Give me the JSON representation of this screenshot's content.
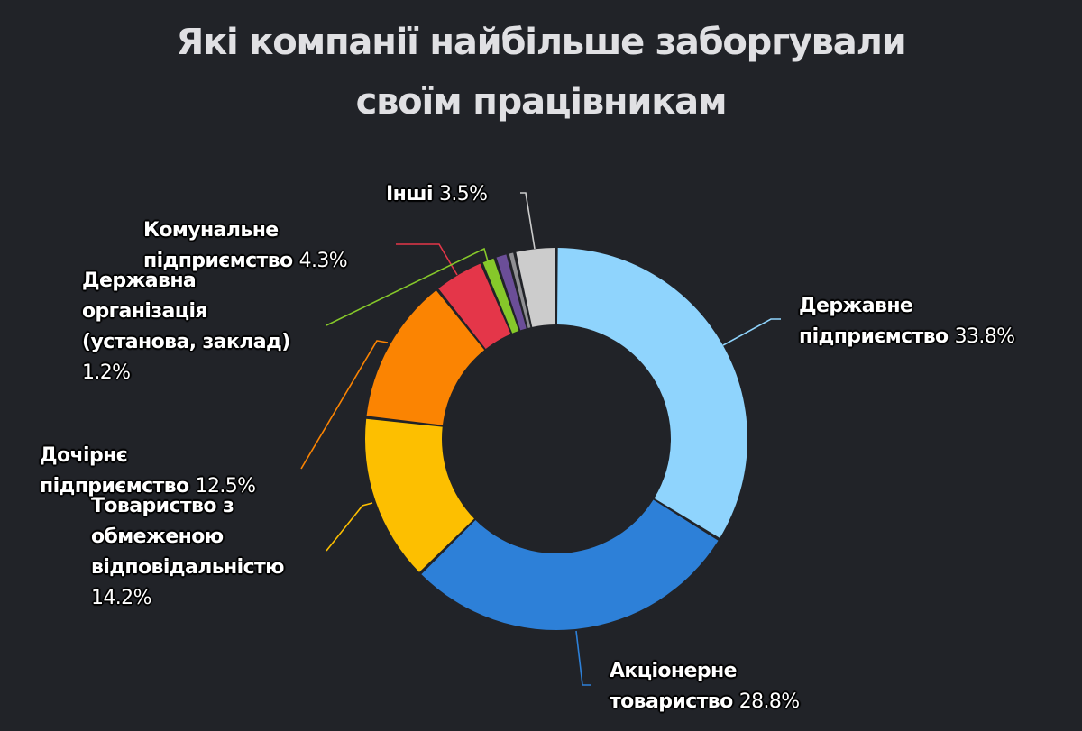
{
  "title": {
    "line1": "Які компанії найбільше заборгували",
    "line2": "своїм працівникам"
  },
  "chart_data": {
    "type": "pie",
    "subtype": "donut",
    "title": "Які компанії найбільше заборгували своїм працівникам",
    "start_angle": 0,
    "direction": "clockwise",
    "legend": "none (data labels with leader lines)",
    "categories": [
      "Державне підприємство",
      "Акціонерне товариство",
      "Товариство з обмеженою відповідальністю",
      "Дочірнє підприємство",
      "Комунальне підприємство",
      "Державна організація (установа, заклад)",
      "(unlabeled purple)",
      "(unlabeled gray)",
      "Інші"
    ],
    "values": [
      33.8,
      28.8,
      14.2,
      12.5,
      4.3,
      1.2,
      1.1,
      0.6,
      3.5
    ],
    "colors": [
      "#8fd4fd",
      "#2d80d8",
      "#fdbf00",
      "#fb8402",
      "#e43649",
      "#86c82a",
      "#6b4e98",
      "#8f8f93",
      "#cccccc"
    ],
    "labeled": [
      true,
      true,
      true,
      true,
      true,
      true,
      false,
      false,
      true
    ],
    "unit": "%"
  },
  "labels": [
    {
      "lines": [
        "Державне",
        "підприємство"
      ],
      "pct": "33.8%"
    },
    {
      "lines": [
        "Акціонерне",
        "товариство"
      ],
      "pct": "28.8%"
    },
    {
      "lines": [
        "Товариство з",
        "обмеженою",
        "відповідальністю"
      ],
      "pct": "14.2%"
    },
    {
      "lines": [
        "Дочірнє",
        "підприємство"
      ],
      "pct": "12.5%"
    },
    {
      "lines": [
        "Комунальне",
        "підприємство"
      ],
      "pct": "4.3%"
    },
    {
      "lines": [
        "Державна",
        "організація",
        "(установа, заклад)"
      ],
      "pct": "1.2%"
    },
    {
      "lines": [
        "Інші"
      ],
      "pct": "3.5%"
    }
  ]
}
